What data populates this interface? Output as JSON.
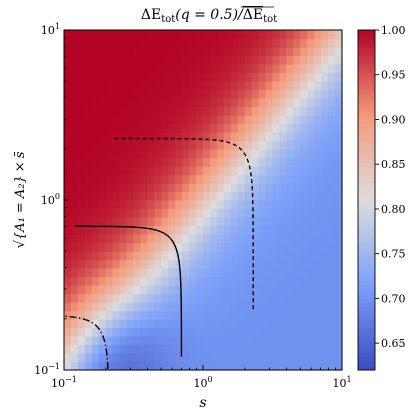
{
  "chart_data": {
    "type": "heatmap",
    "title": "ΔE_tot(q = 0.5)/ΔE_tot (overlined)",
    "title_parts": {
      "main": "ΔE",
      "sub": "tot",
      "arg": "(q = 0.5)/",
      "over": "ΔE",
      "over_sub": "tot"
    },
    "xlabel": "s",
    "ylabel": "√{A₁ = A₂} × s̄",
    "ylabel_parts": {
      "sqrt_body": "{A₁ = A₂}",
      "times": "×",
      "var": "s̄"
    },
    "x_scale": "log",
    "y_scale": "log",
    "xlim": [
      0.1,
      10
    ],
    "ylim": [
      0.1,
      10
    ],
    "x_ticks": [
      {
        "base": "10",
        "exp": "−1"
      },
      {
        "base": "10",
        "exp": "0"
      },
      {
        "base": "10",
        "exp": "1"
      }
    ],
    "y_ticks": [
      {
        "base": "10",
        "exp": "−1"
      },
      {
        "base": "10",
        "exp": "0"
      },
      {
        "base": "10",
        "exp": "1"
      }
    ],
    "colormap": "coolwarm",
    "grid_resolution": 40,
    "value_model": "value ≈ 0.7 + 0.3·sigmoid(2.2·ln(y/x)), with a deeper blue trough (~0.63) near x≈0.2, y≈0.12",
    "colorbar": {
      "range": [
        0.62,
        1.0
      ],
      "ticks": [
        "0.65",
        "0.70",
        "0.75",
        "0.80",
        "0.85",
        "0.90",
        "0.95",
        "1.00"
      ],
      "tick_values": [
        0.65,
        0.7,
        0.75,
        0.8,
        0.85,
        0.9,
        0.95,
        1.0
      ]
    },
    "contours": [
      {
        "name": "dash-dot",
        "style": "dashdot",
        "r": 0.21
      },
      {
        "name": "solid",
        "style": "solid",
        "r": 0.7
      },
      {
        "name": "dashed",
        "style": "dashed",
        "r": 2.3
      }
    ],
    "colors": {
      "low": "#3b4cc0",
      "mid": "#dddddd",
      "high": "#b40426",
      "line": "#000000"
    }
  }
}
